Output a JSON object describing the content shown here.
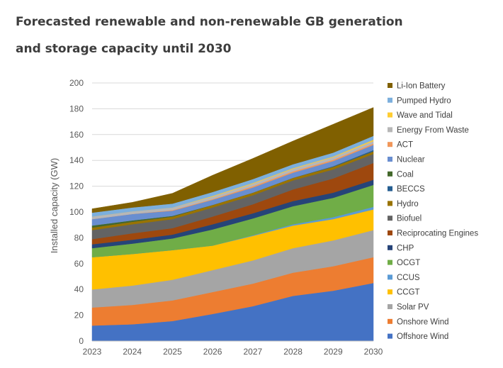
{
  "title": {
    "line1": "Forecasted renewable and non-renewable GB generation",
    "line2": "and storage capacity until 2030"
  },
  "chart_data": {
    "type": "area",
    "stacked": true,
    "x": [
      "2023",
      "2024",
      "2025",
      "2026",
      "2027",
      "2028",
      "2029",
      "2030"
    ],
    "ylabel": "Installed capacity (GW)",
    "xlabel": "",
    "ylim": [
      0,
      200
    ],
    "yticks": [
      0,
      20,
      40,
      60,
      80,
      100,
      120,
      140,
      160,
      180,
      200
    ],
    "legend_position": "right",
    "series": [
      {
        "name": "Offshore Wind",
        "color": "#4472C4",
        "values": [
          12,
          13,
          15.5,
          21,
          27,
          35,
          39,
          45
        ]
      },
      {
        "name": "Onshore Wind",
        "color": "#ED7D31",
        "values": [
          14,
          15,
          16,
          17,
          17.5,
          18,
          19,
          20
        ]
      },
      {
        "name": "Solar PV",
        "color": "#A5A5A5",
        "values": [
          14,
          15,
          16,
          17,
          18,
          19,
          20,
          21
        ]
      },
      {
        "name": "CCGT",
        "color": "#FFC000",
        "values": [
          25,
          24.5,
          23,
          19,
          19,
          17.5,
          16.5,
          16
        ]
      },
      {
        "name": "CCUS",
        "color": "#5B9BD5",
        "values": [
          0,
          0,
          0,
          0,
          0.5,
          1,
          1.5,
          2
        ]
      },
      {
        "name": "OCGT",
        "color": "#70AD47",
        "values": [
          7,
          8,
          9,
          12.5,
          13,
          14,
          15,
          17
        ]
      },
      {
        "name": "CHP",
        "color": "#264478",
        "values": [
          3,
          3,
          3,
          4,
          4,
          4,
          4,
          4
        ]
      },
      {
        "name": "Reciprocating Engines",
        "color": "#9E480E",
        "values": [
          4,
          5,
          5,
          6,
          7,
          9,
          11,
          13
        ]
      },
      {
        "name": "Biofuel",
        "color": "#636363",
        "values": [
          7,
          7,
          7,
          7,
          7,
          7,
          7,
          7
        ]
      },
      {
        "name": "Hydro",
        "color": "#997300",
        "values": [
          2,
          2,
          2,
          2,
          2,
          2,
          2,
          2
        ]
      },
      {
        "name": "BECCS",
        "color": "#255E91",
        "values": [
          0,
          0,
          0,
          0,
          0,
          0,
          0.5,
          1
        ]
      },
      {
        "name": "Coal",
        "color": "#43682B",
        "values": [
          1.5,
          1,
          0.5,
          0,
          0,
          0,
          0,
          0
        ]
      },
      {
        "name": "Nuclear",
        "color": "#698ED0",
        "values": [
          5,
          5,
          4,
          4,
          4,
          4,
          4,
          4
        ]
      },
      {
        "name": "ACT",
        "color": "#F1975A",
        "values": [
          0,
          0,
          0.5,
          0.5,
          1,
          1,
          1,
          1
        ]
      },
      {
        "name": "Energy From Waste",
        "color": "#B7B7B7",
        "values": [
          2,
          2,
          2,
          2,
          2,
          2,
          2,
          2
        ]
      },
      {
        "name": "Wave and Tidal",
        "color": "#FFCD33",
        "values": [
          0,
          0,
          0,
          0.5,
          0.5,
          0.5,
          0.5,
          1
        ]
      },
      {
        "name": "Pumped Hydro",
        "color": "#7CAFDD",
        "values": [
          3,
          3,
          3,
          3,
          3,
          3,
          3,
          3
        ]
      },
      {
        "name": "Li-Ion Battery",
        "color": "#806000",
        "values": [
          3,
          4,
          8,
          13,
          16,
          18,
          22,
          22
        ]
      }
    ]
  }
}
